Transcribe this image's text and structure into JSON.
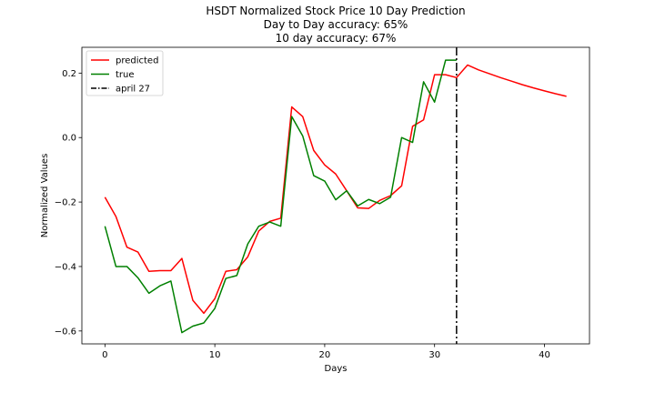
{
  "chart_data": {
    "type": "line",
    "title": [
      "HSDT Normalized Stock Price 10 Day Prediction",
      "Day to Day accuracy: 65%",
      "10 day accuracy: 67%"
    ],
    "xlabel": "Days",
    "ylabel": "Normalized Values",
    "xlim": [
      -2.1,
      44.1
    ],
    "ylim": [
      -0.64,
      0.28
    ],
    "xticks": [
      0,
      10,
      20,
      30,
      40
    ],
    "xtick_labels": [
      "0",
      "10",
      "20",
      "30",
      "40"
    ],
    "yticks": [
      -0.6,
      -0.4,
      -0.2,
      0.0,
      0.2
    ],
    "ytick_labels": [
      "−0.6",
      "−0.4",
      "−0.2",
      "0.0",
      "0.2"
    ],
    "grid": false,
    "legend_position": "top-left",
    "series": [
      {
        "name": "predicted",
        "color": "#ff0000",
        "x": [
          0,
          1,
          2,
          3,
          4,
          5,
          6,
          7,
          8,
          9,
          10,
          11,
          12,
          13,
          14,
          15,
          16,
          17,
          18,
          19,
          20,
          21,
          22,
          23,
          24,
          25,
          26,
          27,
          28,
          29,
          30,
          31,
          32,
          33,
          34,
          35,
          36,
          37,
          38,
          39,
          40,
          41,
          42
        ],
        "y": [
          -0.185,
          -0.245,
          -0.34,
          -0.355,
          -0.415,
          -0.413,
          -0.413,
          -0.375,
          -0.505,
          -0.545,
          -0.5,
          -0.415,
          -0.41,
          -0.37,
          -0.29,
          -0.26,
          -0.25,
          0.095,
          0.065,
          -0.04,
          -0.085,
          -0.113,
          -0.165,
          -0.218,
          -0.22,
          -0.195,
          -0.18,
          -0.15,
          0.035,
          0.055,
          0.195,
          0.195,
          0.186,
          0.225,
          0.21,
          0.198,
          0.186,
          0.175,
          0.164,
          0.154,
          0.145,
          0.136,
          0.128
        ]
      },
      {
        "name": "true",
        "color": "#008000",
        "x": [
          0,
          1,
          2,
          3,
          4,
          5,
          6,
          7,
          8,
          9,
          10,
          11,
          12,
          13,
          14,
          15,
          16,
          17,
          18,
          19,
          20,
          21,
          22,
          23,
          24,
          25,
          26,
          27,
          28,
          29,
          30,
          31,
          32
        ],
        "y": [
          -0.275,
          -0.4,
          -0.4,
          -0.435,
          -0.483,
          -0.46,
          -0.445,
          -0.605,
          -0.585,
          -0.575,
          -0.53,
          -0.437,
          -0.428,
          -0.33,
          -0.275,
          -0.262,
          -0.275,
          0.065,
          0.005,
          -0.118,
          -0.135,
          -0.193,
          -0.165,
          -0.212,
          -0.192,
          -0.205,
          -0.185,
          0.0,
          -0.015,
          0.173,
          0.11,
          0.24,
          0.24
        ]
      }
    ],
    "vline": {
      "label": "april 27",
      "x": 32,
      "color": "#000000",
      "style": "dashdot"
    }
  }
}
